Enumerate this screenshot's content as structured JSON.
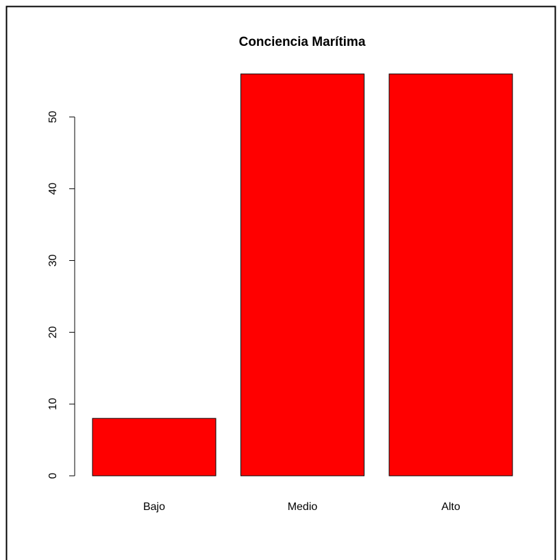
{
  "chart_data": {
    "type": "bar",
    "title": "Conciencia Marítima",
    "categories": [
      "Bajo",
      "Medio",
      "Alto"
    ],
    "values": [
      8,
      56,
      56
    ],
    "color": "#ff0000",
    "ylim": [
      0,
      56
    ],
    "yticks": [
      0,
      10,
      20,
      30,
      40,
      50
    ]
  }
}
